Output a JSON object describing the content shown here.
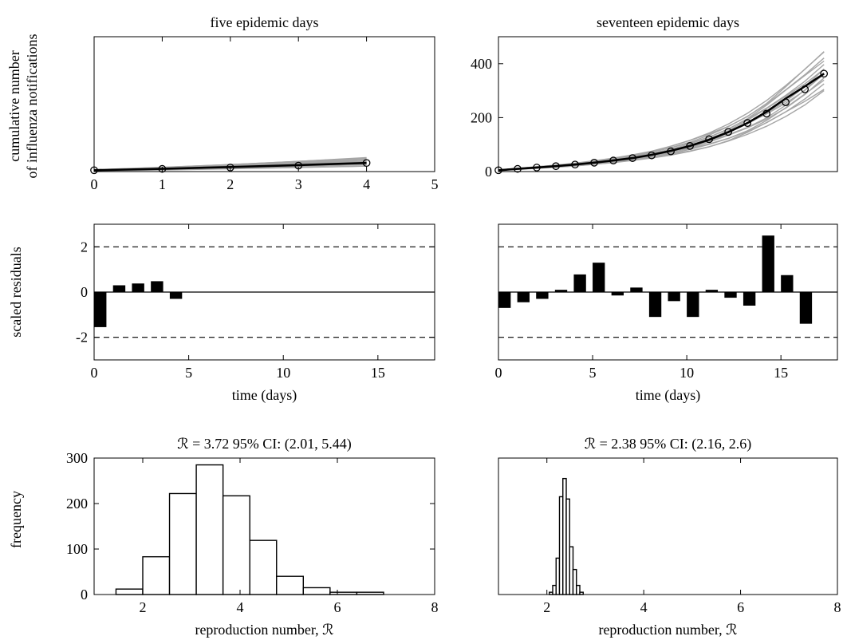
{
  "figure": {
    "ylabel_top_line1": "cumulative number",
    "ylabel_top_line2": "of influenza notifications",
    "ylabel_middle": "scaled residuals",
    "ylabel_bottom": "frequency"
  },
  "chart_data": [
    {
      "id": "fit-five",
      "type": "line",
      "title": "five epidemic days",
      "xlabel": "",
      "ylabel": "",
      "xlim": [
        0,
        5
      ],
      "ylim": [
        0,
        500
      ],
      "xticks": [
        0,
        1,
        2,
        3,
        4,
        5
      ],
      "yticks": [],
      "x": [
        0,
        1,
        2,
        3,
        4
      ],
      "observed": [
        5,
        10,
        15,
        22,
        32
      ],
      "fit": [
        5,
        10,
        17,
        24,
        32
      ],
      "ensemble_low": [
        3,
        6,
        10,
        15,
        20
      ],
      "ensemble_high": [
        7,
        16,
        26,
        38,
        52
      ],
      "series_color": "#000000",
      "ensemble_color": "#a6a6a6"
    },
    {
      "id": "fit-seventeen",
      "type": "line",
      "title": "seventeen epidemic days",
      "xlabel": "",
      "ylabel": "",
      "xlim": [
        0,
        17.7
      ],
      "ylim": [
        0,
        500
      ],
      "xticks": [],
      "yticks": [
        0,
        200,
        400
      ],
      "x": [
        0,
        1,
        2,
        3,
        4,
        5,
        6,
        7,
        8,
        9,
        10,
        11,
        12,
        13,
        14,
        15,
        16,
        17
      ],
      "observed": [
        5,
        10,
        15,
        20,
        26,
        33,
        41,
        50,
        60,
        75,
        95,
        120,
        147,
        180,
        215,
        257,
        305,
        363
      ],
      "fit": [
        5,
        10,
        15,
        20,
        26,
        33,
        41,
        50,
        62,
        77,
        95,
        118,
        146,
        180,
        222,
        271,
        316,
        363
      ],
      "ensemble_low": [
        4,
        8,
        12,
        16,
        21,
        27,
        33,
        41,
        50,
        61,
        75,
        92,
        113,
        138,
        168,
        204,
        247,
        300
      ],
      "ensemble_high": [
        6,
        12,
        18,
        24,
        31,
        40,
        50,
        62,
        76,
        94,
        116,
        143,
        176,
        216,
        264,
        320,
        380,
        445
      ],
      "series_color": "#000000",
      "ensemble_color": "#a6a6a6"
    },
    {
      "id": "residuals-five",
      "type": "bar",
      "title": "",
      "xlabel": "time (days)",
      "ylabel": "",
      "xlim": [
        0,
        18
      ],
      "ylim": [
        -3,
        3
      ],
      "xticks": [
        0,
        5,
        10,
        15
      ],
      "yticks": [
        -2,
        0,
        2
      ],
      "bar_width": 0.65,
      "bar_x": [
        0,
        1,
        2,
        3,
        4
      ],
      "values": [
        -1.55,
        0.3,
        0.38,
        0.48,
        -0.3
      ],
      "reference_lines": [
        -2,
        2
      ],
      "bar_color": "#000000"
    },
    {
      "id": "residuals-seventeen",
      "type": "bar",
      "title": "",
      "xlabel": "time (days)",
      "ylabel": "",
      "xlim": [
        0,
        18
      ],
      "ylim": [
        -3,
        3
      ],
      "xticks": [
        0,
        5,
        10,
        15
      ],
      "yticks": [],
      "bar_width": 0.65,
      "bar_x": [
        0,
        1,
        2,
        3,
        4,
        5,
        6,
        7,
        8,
        9,
        10,
        11,
        12,
        13,
        14,
        15,
        16
      ],
      "values": [
        -0.7,
        -0.45,
        -0.3,
        0.1,
        0.78,
        1.3,
        -0.15,
        0.2,
        -1.1,
        -0.4,
        -1.1,
        0.1,
        -0.25,
        -0.6,
        2.5,
        0.75,
        -1.4
      ],
      "reference_lines": [
        -2,
        2
      ],
      "bar_color": "#000000"
    },
    {
      "id": "histogram-five",
      "type": "bar",
      "title": "ℛ = 3.72  95% CI: (2.01, 5.44)",
      "xlabel": "reproduction number, ℛ",
      "ylabel": "",
      "xlim": [
        1,
        8
      ],
      "ylim": [
        0,
        300
      ],
      "xticks": [
        2,
        4,
        6,
        8
      ],
      "yticks": [
        0,
        100,
        200,
        300
      ],
      "bin_edges": [
        1.45,
        2.0,
        2.55,
        3.1,
        3.65,
        4.2,
        4.75,
        5.3,
        5.85,
        6.4,
        6.95,
        7.5
      ],
      "counts": [
        12,
        83,
        222,
        285,
        217,
        119,
        40,
        15,
        5,
        5,
        0
      ],
      "bar_color": "#ffffff"
    },
    {
      "id": "histogram-seventeen",
      "type": "bar",
      "title": "ℛ = 2.38  95% CI: (2.16, 2.6)",
      "xlabel": "reproduction number, ℛ",
      "ylabel": "",
      "xlim": [
        1,
        8
      ],
      "ylim": [
        0,
        300
      ],
      "xticks": [
        2,
        4,
        6,
        8
      ],
      "yticks": [],
      "bin_edges": [
        2.05,
        2.12,
        2.19,
        2.26,
        2.33,
        2.4,
        2.47,
        2.54,
        2.61,
        2.68,
        2.75
      ],
      "counts": [
        5,
        20,
        80,
        215,
        255,
        210,
        105,
        55,
        20,
        5
      ],
      "bar_color": "#ffffff"
    }
  ]
}
